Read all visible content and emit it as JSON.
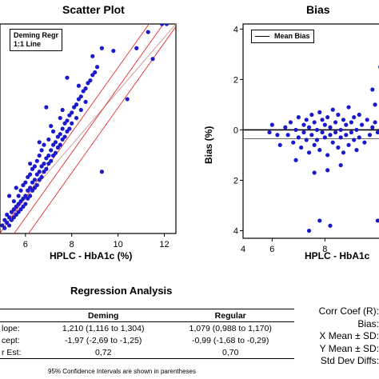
{
  "chart_data": [
    {
      "type": "scatter",
      "title": "Scatter Plot",
      "xlabel": "HPLC - HbA1c (%)",
      "ylabel": "",
      "xlim": [
        4.9,
        12.5
      ],
      "ylim": [
        4.7,
        12.5
      ],
      "xticks": [
        6,
        8,
        10,
        12
      ],
      "legend": {
        "placement": "top-left",
        "entries": [
          "Deming Regr",
          "1:1 Line"
        ]
      },
      "lines": {
        "identity": {
          "slope": 1,
          "intercept": 0
        },
        "deming": {
          "slope": 1.21,
          "intercept": -1.97
        },
        "deming_upper": {
          "slope": 1.21,
          "intercept": -1.22
        },
        "deming_lower": {
          "slope": 1.21,
          "intercept": -2.72
        }
      },
      "points": [
        [
          5.0,
          5.0
        ],
        [
          5.1,
          4.9
        ],
        [
          5.1,
          5.2
        ],
        [
          5.2,
          5.1
        ],
        [
          5.2,
          5.4
        ],
        [
          5.3,
          5.3
        ],
        [
          5.3,
          5.0
        ],
        [
          5.4,
          5.5
        ],
        [
          5.4,
          5.2
        ],
        [
          5.5,
          5.6
        ],
        [
          5.5,
          5.3
        ],
        [
          5.5,
          5.9
        ],
        [
          5.6,
          5.7
        ],
        [
          5.6,
          5.4
        ],
        [
          5.7,
          5.8
        ],
        [
          5.7,
          5.5
        ],
        [
          5.7,
          6.1
        ],
        [
          5.8,
          5.9
        ],
        [
          5.8,
          5.6
        ],
        [
          5.8,
          6.3
        ],
        [
          5.9,
          6.0
        ],
        [
          5.9,
          5.7
        ],
        [
          5.9,
          6.5
        ],
        [
          6.0,
          6.1
        ],
        [
          6.0,
          5.8
        ],
        [
          6.0,
          6.6
        ],
        [
          6.1,
          6.3
        ],
        [
          6.1,
          6.0
        ],
        [
          6.1,
          6.8
        ],
        [
          6.2,
          6.4
        ],
        [
          6.2,
          6.1
        ],
        [
          6.2,
          6.9
        ],
        [
          6.3,
          6.6
        ],
        [
          6.3,
          6.3
        ],
        [
          6.3,
          7.1
        ],
        [
          6.4,
          6.7
        ],
        [
          6.4,
          6.4
        ],
        [
          6.4,
          7.2
        ],
        [
          6.5,
          6.9
        ],
        [
          6.5,
          6.5
        ],
        [
          6.5,
          7.4
        ],
        [
          6.6,
          7.0
        ],
        [
          6.6,
          6.7
        ],
        [
          6.6,
          7.6
        ],
        [
          6.7,
          7.2
        ],
        [
          6.7,
          6.8
        ],
        [
          6.7,
          7.8
        ],
        [
          6.8,
          7.3
        ],
        [
          6.8,
          7.0
        ],
        [
          6.8,
          8.0
        ],
        [
          6.9,
          7.5
        ],
        [
          6.9,
          7.1
        ],
        [
          7.0,
          7.6
        ],
        [
          7.0,
          7.3
        ],
        [
          7.0,
          8.2
        ],
        [
          7.1,
          7.8
        ],
        [
          7.1,
          7.4
        ],
        [
          7.2,
          8.0
        ],
        [
          7.2,
          7.6
        ],
        [
          7.2,
          8.5
        ],
        [
          7.3,
          8.1
        ],
        [
          7.3,
          7.7
        ],
        [
          7.4,
          8.3
        ],
        [
          7.4,
          7.9
        ],
        [
          7.5,
          8.4
        ],
        [
          7.5,
          8.0
        ],
        [
          7.6,
          8.6
        ],
        [
          7.6,
          8.2
        ],
        [
          7.7,
          8.8
        ],
        [
          7.7,
          8.3
        ],
        [
          7.8,
          8.9
        ],
        [
          7.8,
          8.5
        ],
        [
          7.9,
          9.1
        ],
        [
          7.9,
          8.6
        ],
        [
          8.0,
          9.2
        ],
        [
          8.0,
          8.8
        ],
        [
          8.1,
          9.4
        ],
        [
          8.2,
          9.5
        ],
        [
          8.2,
          9.0
        ],
        [
          8.3,
          9.7
        ],
        [
          8.4,
          9.8
        ],
        [
          8.4,
          9.3
        ],
        [
          8.5,
          10.0
        ],
        [
          8.6,
          10.1
        ],
        [
          8.6,
          9.6
        ],
        [
          8.7,
          10.3
        ],
        [
          8.8,
          10.4
        ],
        [
          8.9,
          10.6
        ],
        [
          9.0,
          10.7
        ],
        [
          9.1,
          10.9
        ],
        [
          6.9,
          9.4
        ],
        [
          7.6,
          9.3
        ],
        [
          7.8,
          10.5
        ],
        [
          8.3,
          10.2
        ],
        [
          8.9,
          11.3
        ],
        [
          9.3,
          11.6
        ],
        [
          9.3,
          7.0
        ],
        [
          9.8,
          11.5
        ],
        [
          10.4,
          9.7
        ],
        [
          10.8,
          11.6
        ],
        [
          11.3,
          12.2
        ],
        [
          11.5,
          11.2
        ],
        [
          11.9,
          12.5
        ],
        [
          12.1,
          12.5
        ],
        [
          5.3,
          6.1
        ],
        [
          5.6,
          6.4
        ],
        [
          6.2,
          7.3
        ],
        [
          6.6,
          8.1
        ],
        [
          7.1,
          8.7
        ],
        [
          7.5,
          9.0
        ]
      ]
    },
    {
      "type": "scatter",
      "title": "Bias",
      "xlabel": "HPLC - HbA1c",
      "ylabel": "Bias (%)",
      "xlim": [
        4.9,
        10.2
      ],
      "ylim": [
        -4.3,
        4.2
      ],
      "xticks": [
        4,
        6,
        8
      ],
      "yticks": [
        -4,
        -2,
        0,
        2,
        4
      ],
      "legend": {
        "placement": "top-left",
        "entries": [
          "Mean Bias"
        ]
      },
      "mean_bias": -0.35,
      "points": [
        [
          6.5,
          0.1
        ],
        [
          6.6,
          -0.2
        ],
        [
          6.7,
          0.3
        ],
        [
          6.8,
          -0.5
        ],
        [
          6.9,
          0.0
        ],
        [
          7.0,
          -0.3
        ],
        [
          7.0,
          0.5
        ],
        [
          7.1,
          -0.7
        ],
        [
          7.2,
          0.2
        ],
        [
          7.2,
          -0.1
        ],
        [
          7.3,
          0.4
        ],
        [
          7.3,
          -0.4
        ],
        [
          7.4,
          -0.9
        ],
        [
          7.4,
          0.1
        ],
        [
          7.5,
          0.6
        ],
        [
          7.5,
          -0.2
        ],
        [
          7.6,
          -0.6
        ],
        [
          7.6,
          0.3
        ],
        [
          7.7,
          -0.4
        ],
        [
          7.7,
          0.0
        ],
        [
          7.8,
          0.7
        ],
        [
          7.8,
          -0.8
        ],
        [
          7.9,
          -0.1
        ],
        [
          7.9,
          0.4
        ],
        [
          8.0,
          -0.3
        ],
        [
          8.0,
          0.2
        ],
        [
          8.1,
          -1.0
        ],
        [
          8.1,
          0.5
        ],
        [
          8.2,
          -0.2
        ],
        [
          8.2,
          0.1
        ],
        [
          8.3,
          0.8
        ],
        [
          8.3,
          -0.5
        ],
        [
          8.4,
          -0.1
        ],
        [
          8.4,
          0.3
        ],
        [
          8.5,
          -0.7
        ],
        [
          8.5,
          0.6
        ],
        [
          8.6,
          -0.3
        ],
        [
          8.6,
          0.0
        ],
        [
          8.7,
          0.4
        ],
        [
          8.7,
          -0.9
        ],
        [
          8.8,
          -0.2
        ],
        [
          8.8,
          0.2
        ],
        [
          8.9,
          0.9
        ],
        [
          8.9,
          -0.6
        ],
        [
          9.0,
          -0.1
        ],
        [
          9.0,
          0.3
        ],
        [
          9.1,
          -0.4
        ],
        [
          9.1,
          0.5
        ],
        [
          9.2,
          0.0
        ],
        [
          9.2,
          -0.8
        ],
        [
          9.3,
          0.6
        ],
        [
          9.3,
          -0.3
        ],
        [
          9.4,
          0.2
        ],
        [
          9.5,
          -0.5
        ],
        [
          9.6,
          0.4
        ],
        [
          9.7,
          -0.2
        ],
        [
          9.8,
          0.1
        ],
        [
          9.9,
          0.3
        ],
        [
          10.0,
          -0.1
        ],
        [
          10.1,
          0.0
        ],
        [
          6.2,
          -0.2
        ],
        [
          6.0,
          0.2
        ],
        [
          6.3,
          -0.6
        ],
        [
          5.9,
          -0.1
        ],
        [
          7.6,
          -1.7
        ],
        [
          8.1,
          -1.6
        ],
        [
          7.4,
          -4.0
        ],
        [
          7.8,
          -3.6
        ],
        [
          8.2,
          -3.8
        ],
        [
          10.1,
          2.5
        ],
        [
          9.8,
          1.6
        ],
        [
          10.0,
          -3.6
        ],
        [
          9.9,
          1.0
        ],
        [
          6.9,
          -1.2
        ],
        [
          8.6,
          -1.4
        ]
      ]
    }
  ],
  "regression": {
    "title": "Regression Analysis",
    "columns": [
      "",
      "Deming",
      "Regular"
    ],
    "rows": [
      [
        "lope:",
        "1,210 (1,116 to 1,304)",
        "1,079 (0,988 to 1,170)"
      ],
      [
        "cept:",
        "-1,97 (-2,69 to -1,25)",
        "-0,99 (-1,68 to -0,29)"
      ],
      [
        "r Est:",
        "0,72",
        "0,70"
      ]
    ],
    "footnote": "95% Confidence Intervals are shown in parentheses"
  },
  "stats_labels": [
    "Corr Coef (R):",
    "Bias:",
    "X Mean ± SD:",
    "Y Mean ± SD:",
    "Std Dev Diffs:"
  ],
  "colors": {
    "points": "#1a1acc",
    "regression": "#e03030",
    "identity": "#c8a0a0",
    "mean_bias": "#555555"
  }
}
